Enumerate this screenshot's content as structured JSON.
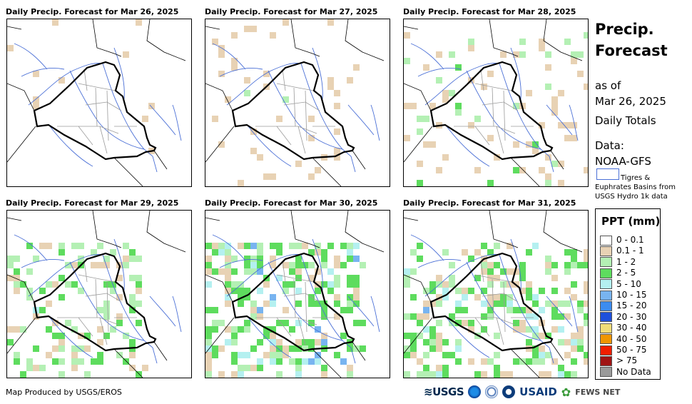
{
  "panels": [
    {
      "title": "Daily Precip. Forecast for Mar 26, 2025"
    },
    {
      "title": "Daily Precip. Forecast for Mar 27, 2025"
    },
    {
      "title": "Daily Precip. Forecast for Mar 28, 2025"
    },
    {
      "title": "Daily Precip. Forecast for Mar 29, 2025"
    },
    {
      "title": "Daily Precip. Forecast for Mar 30, 2025"
    },
    {
      "title": "Daily Precip. Forecast for Mar 31, 2025"
    }
  ],
  "sidebar": {
    "title_line1": "Precip.",
    "title_line2": "Forecast",
    "as_of_label": "as of",
    "date": "Mar 26, 2025",
    "totals": "Daily Totals",
    "data_label": "Data:",
    "data_source": "NOAA-GFS",
    "basin_note_line1": "Tigres &",
    "basin_note_line2": "Euphrates Basins from",
    "basin_note_line3": "USGS Hydro 1k data"
  },
  "legend": {
    "title": "PPT (mm)",
    "items": [
      {
        "label": "0 - 0.1",
        "color": "#ffffff"
      },
      {
        "label": "0.1 - 1",
        "color": "#e8d2b4"
      },
      {
        "label": "1 - 2",
        "color": "#b4f0b4"
      },
      {
        "label": "2 - 5",
        "color": "#5edc5e"
      },
      {
        "label": "5 - 10",
        "color": "#b4f0f0"
      },
      {
        "label": "10 - 15",
        "color": "#78b4f0"
      },
      {
        "label": "15 - 20",
        "color": "#3c8cf0"
      },
      {
        "label": "20 - 30",
        "color": "#1e50dc"
      },
      {
        "label": "30 - 40",
        "color": "#f0dc78"
      },
      {
        "label": "40 - 50",
        "color": "#f09600"
      },
      {
        "label": "50 - 75",
        "color": "#f01e00"
      },
      {
        "label": "> 75",
        "color": "#a01414"
      },
      {
        "label": "No Data",
        "color": "#9a9a9a"
      }
    ]
  },
  "footer": {
    "credit": "Map Produced by USGS/EROS"
  },
  "logos": {
    "usgs": "≋USGS",
    "usaid": "USAID",
    "fews": "FEWS NET"
  },
  "colors": {
    "iraq_border": "#000000",
    "province_lines": "#9a9a9a",
    "rivers": "#4a6fd6"
  },
  "panel_intensity": [
    0,
    1,
    2,
    3,
    4,
    5
  ]
}
